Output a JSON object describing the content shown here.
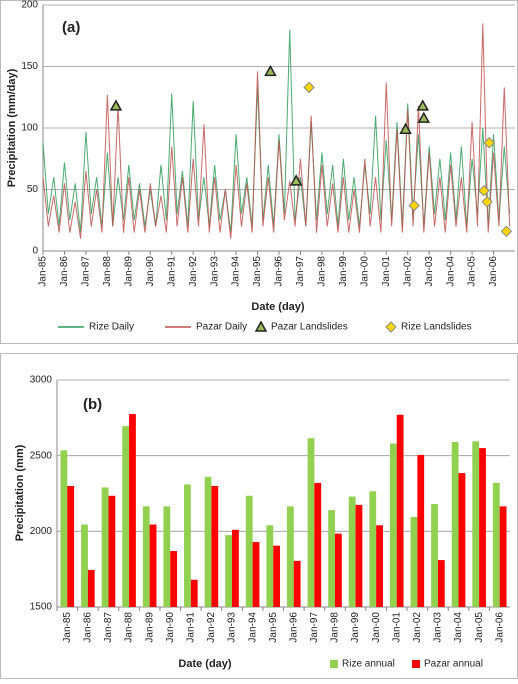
{
  "chart_data": [
    {
      "type": "line",
      "annotation": "(a)",
      "x_label": "Date (day)",
      "y_label": "Precipitation (mm/day)",
      "xlim": [
        1985,
        2007
      ],
      "ylim": [
        0,
        200
      ],
      "yticks": [
        0,
        50,
        100,
        150,
        200
      ],
      "grid": true,
      "legend": "bottom",
      "xticks": [
        {
          "value": 1985,
          "label": "Jan-85"
        },
        {
          "value": 1986,
          "label": "Jan-86"
        },
        {
          "value": 1987,
          "label": "Jan-87"
        },
        {
          "value": 1988,
          "label": "Jan-88"
        },
        {
          "value": 1989,
          "label": "Jan-89"
        },
        {
          "value": 1990,
          "label": "Jan-90"
        },
        {
          "value": 1991,
          "label": "Jan-91"
        },
        {
          "value": 1992,
          "label": "Jan-92"
        },
        {
          "value": 1993,
          "label": "Jan-93"
        },
        {
          "value": 1994,
          "label": "Jan-94"
        },
        {
          "value": 1995,
          "label": "Jan-95"
        },
        {
          "value": 1996,
          "label": "Jan-96"
        },
        {
          "value": 1997,
          "label": "Jan-97"
        },
        {
          "value": 1998,
          "label": "Jan-98"
        },
        {
          "value": 1999,
          "label": "Jan-99"
        },
        {
          "value": 2000,
          "label": "Jan-00"
        },
        {
          "value": 2001,
          "label": "Jan-01"
        },
        {
          "value": 2002,
          "label": "Jan-02"
        },
        {
          "value": 2003,
          "label": "Jan-03"
        },
        {
          "value": 2004,
          "label": "Jan-04"
        },
        {
          "value": 2005,
          "label": "Jan-05"
        },
        {
          "value": 2006,
          "label": "Jan-06"
        }
      ],
      "x": [
        1985,
        1985.25,
        1985.5,
        1985.75,
        1986,
        1986.25,
        1986.5,
        1986.75,
        1987,
        1987.25,
        1987.5,
        1987.75,
        1988,
        1988.25,
        1988.5,
        1988.75,
        1989,
        1989.25,
        1989.5,
        1989.75,
        1990,
        1990.25,
        1990.5,
        1990.75,
        1991,
        1991.25,
        1991.5,
        1991.75,
        1992,
        1992.25,
        1992.5,
        1992.75,
        1993,
        1993.25,
        1993.5,
        1993.75,
        1994,
        1994.25,
        1994.5,
        1994.75,
        1995,
        1995.25,
        1995.5,
        1995.75,
        1996,
        1996.25,
        1996.5,
        1996.75,
        1997,
        1997.25,
        1997.5,
        1997.75,
        1998,
        1998.25,
        1998.5,
        1998.75,
        1999,
        1999.25,
        1999.5,
        1999.75,
        2000,
        2000.25,
        2000.5,
        2000.75,
        2001,
        2001.25,
        2001.5,
        2001.75,
        2002,
        2002.25,
        2002.5,
        2002.75,
        2003,
        2003.25,
        2003.5,
        2003.75,
        2004,
        2004.25,
        2004.5,
        2004.75,
        2005,
        2005.25,
        2005.5,
        2005.75,
        2006,
        2006.25,
        2006.5,
        2006.75
      ],
      "series": [
        {
          "name": "Rize Daily",
          "color": "#2e9e5b",
          "values": [
            88,
            30,
            60,
            20,
            72,
            25,
            55,
            15,
            97,
            30,
            60,
            20,
            80,
            20,
            60,
            25,
            70,
            25,
            55,
            20,
            50,
            20,
            70,
            25,
            128,
            30,
            65,
            20,
            122,
            25,
            60,
            20,
            70,
            25,
            50,
            15,
            95,
            30,
            60,
            20,
            133,
            25,
            70,
            20,
            95,
            30,
            180,
            25,
            60,
            20,
            105,
            25,
            80,
            30,
            70,
            20,
            75,
            25,
            60,
            20,
            70,
            30,
            110,
            25,
            90,
            25,
            105,
            20,
            120,
            30,
            95,
            20,
            85,
            30,
            75,
            25,
            80,
            25,
            85,
            20,
            75,
            30,
            100,
            20,
            95,
            25,
            85,
            30
          ]
        },
        {
          "name": "Pazar Daily",
          "color": "#c0504d",
          "values": [
            60,
            20,
            45,
            15,
            55,
            15,
            40,
            10,
            65,
            20,
            50,
            15,
            127,
            20,
            118,
            15,
            60,
            15,
            50,
            15,
            55,
            20,
            45,
            15,
            85,
            20,
            60,
            15,
            75,
            20,
            103,
            15,
            60,
            15,
            50,
            10,
            70,
            20,
            55,
            15,
            146,
            20,
            60,
            15,
            90,
            25,
            57,
            20,
            75,
            20,
            110,
            15,
            70,
            20,
            55,
            15,
            60,
            15,
            50,
            15,
            75,
            20,
            60,
            15,
            137,
            20,
            99,
            15,
            115,
            20,
            118,
            15,
            80,
            20,
            60,
            15,
            70,
            20,
            60,
            15,
            105,
            20,
            185,
            15,
            80,
            20,
            133,
            20
          ]
        },
        {
          "name": "Pazar Landslides",
          "color": "#9bbb59",
          "marker": "triangle",
          "x": [
            1988.4,
            1995.6,
            1996.8,
            2001.9,
            2002.7,
            2002.75
          ],
          "values": [
            118,
            146,
            57,
            99,
            118,
            108
          ]
        },
        {
          "name": "Rize Landslides",
          "color": "#ffd700",
          "marker": "diamond",
          "x": [
            1997.4,
            2002.3,
            2005.55,
            2005.7,
            2005.8,
            2006.6
          ],
          "values": [
            133,
            37,
            49,
            40,
            88,
            16
          ]
        }
      ]
    },
    {
      "type": "bar",
      "annotation": "(b)",
      "x_label": "Date (day)",
      "y_label": "Precipitation (mm)",
      "ylim": [
        1500,
        3000
      ],
      "yticks": [
        1500,
        2000,
        2500,
        3000
      ],
      "grid": true,
      "legend": "bottom right",
      "categories": [
        "Jan-85",
        "Jan-86",
        "Jan-87",
        "Jan-88",
        "Jan-89",
        "Jan-90",
        "Jan-91",
        "Jan-92",
        "Jan-93",
        "Jan-94",
        "Jan-95",
        "Jan-96",
        "Jan-97",
        "Jan-98",
        "Jan-99",
        "Jan-00",
        "Jan-01",
        "Jan-02",
        "Jan-03",
        "Jan-04",
        "Jan-05",
        "Jan-06"
      ],
      "series": [
        {
          "name": "Rize annual",
          "color": "#92d050",
          "values": [
            2535,
            2045,
            2290,
            2695,
            2165,
            2165,
            2310,
            2360,
            1975,
            2235,
            2040,
            2165,
            2615,
            2140,
            2230,
            2265,
            2580,
            2095,
            2180,
            2590,
            2595,
            2320
          ]
        },
        {
          "name": "Pazar annual",
          "color": "#ff0000",
          "values": [
            2300,
            1745,
            2235,
            2775,
            2045,
            1870,
            1680,
            2300,
            2010,
            1930,
            1905,
            1805,
            2320,
            1985,
            2175,
            2040,
            2770,
            2505,
            1810,
            2385,
            2550,
            2165
          ]
        }
      ]
    }
  ]
}
